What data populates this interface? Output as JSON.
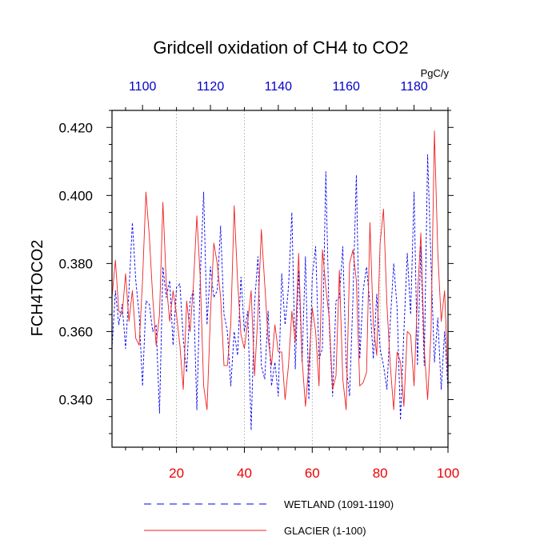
{
  "chart_data": {
    "type": "line",
    "title": "Gridcell oxidation of CH4 to CO2",
    "ylabel": "FCH4TOCO2",
    "units": "PgC/y",
    "xlim": [
      1,
      100
    ],
    "ylim": [
      0.326,
      0.425
    ],
    "y_ticks": [
      0.34,
      0.36,
      0.38,
      0.4,
      0.42
    ],
    "y_tick_labels": [
      "0.340",
      "0.360",
      "0.380",
      "0.400",
      "0.420"
    ],
    "x_ticks_bottom": [
      20,
      40,
      60,
      80,
      100
    ],
    "x_tick_labels_bottom": [
      "20",
      "40",
      "60",
      "80",
      "100"
    ],
    "x_ticks_top_years": [
      1100,
      1120,
      1140,
      1160,
      1180
    ],
    "x_tick_labels_top": [
      "1100",
      "1120",
      "1140",
      "1160",
      "1180"
    ],
    "top_axis_offset": 1090,
    "vertical_gridlines": [
      20,
      40,
      60,
      80
    ],
    "colors": {
      "wetland": "#0000ee",
      "glacier": "#ee2222",
      "bottom_ticks": "#ee0000",
      "top_ticks": "#0000cc"
    },
    "series": [
      {
        "name": "WETLAND (1091-1190)",
        "style": "dashed",
        "color": "#0000ee",
        "values": [
          0.355,
          0.372,
          0.362,
          0.368,
          0.355,
          0.372,
          0.392,
          0.375,
          0.365,
          0.344,
          0.369,
          0.368,
          0.36,
          0.362,
          0.336,
          0.379,
          0.37,
          0.375,
          0.356,
          0.373,
          0.374,
          0.358,
          0.348,
          0.369,
          0.372,
          0.337,
          0.376,
          0.401,
          0.362,
          0.379,
          0.37,
          0.372,
          0.391,
          0.365,
          0.36,
          0.344,
          0.36,
          0.353,
          0.376,
          0.36,
          0.366,
          0.331,
          0.368,
          0.382,
          0.35,
          0.346,
          0.366,
          0.344,
          0.351,
          0.341,
          0.377,
          0.362,
          0.373,
          0.395,
          0.349,
          0.378,
          0.351,
          0.382,
          0.34,
          0.376,
          0.385,
          0.352,
          0.355,
          0.407,
          0.362,
          0.341,
          0.369,
          0.37,
          0.385,
          0.35,
          0.341,
          0.37,
          0.406,
          0.352,
          0.372,
          0.379,
          0.368,
          0.352,
          0.371,
          0.355,
          0.35,
          0.343,
          0.363,
          0.38,
          0.367,
          0.334,
          0.36,
          0.383,
          0.365,
          0.401,
          0.35,
          0.385,
          0.35,
          0.412,
          0.38,
          0.351,
          0.364,
          0.343,
          0.36,
          0.343
        ]
      },
      {
        "name": "GLACIER (1-100)",
        "style": "solid",
        "color": "#ee2222",
        "values": [
          0.37,
          0.381,
          0.366,
          0.365,
          0.377,
          0.363,
          0.372,
          0.358,
          0.356,
          0.375,
          0.401,
          0.388,
          0.37,
          0.356,
          0.365,
          0.398,
          0.374,
          0.363,
          0.372,
          0.365,
          0.356,
          0.343,
          0.369,
          0.36,
          0.374,
          0.394,
          0.376,
          0.344,
          0.337,
          0.365,
          0.386,
          0.38,
          0.37,
          0.35,
          0.35,
          0.362,
          0.397,
          0.375,
          0.359,
          0.355,
          0.363,
          0.372,
          0.347,
          0.365,
          0.39,
          0.374,
          0.358,
          0.35,
          0.362,
          0.354,
          0.354,
          0.34,
          0.35,
          0.366,
          0.357,
          0.383,
          0.352,
          0.338,
          0.35,
          0.367,
          0.36,
          0.344,
          0.384,
          0.373,
          0.364,
          0.343,
          0.347,
          0.378,
          0.346,
          0.337,
          0.38,
          0.384,
          0.375,
          0.344,
          0.345,
          0.348,
          0.392,
          0.362,
          0.353,
          0.386,
          0.396,
          0.368,
          0.35,
          0.337,
          0.354,
          0.351,
          0.338,
          0.36,
          0.359,
          0.344,
          0.37,
          0.389,
          0.355,
          0.34,
          0.36,
          0.419,
          0.383,
          0.363,
          0.372,
          0.346
        ]
      }
    ],
    "legend": [
      {
        "label": "WETLAND (1091-1190)",
        "style": "dashed",
        "color": "#0000ee"
      },
      {
        "label": "GLACIER (1-100)",
        "style": "solid",
        "color": "#ee2222"
      }
    ]
  }
}
